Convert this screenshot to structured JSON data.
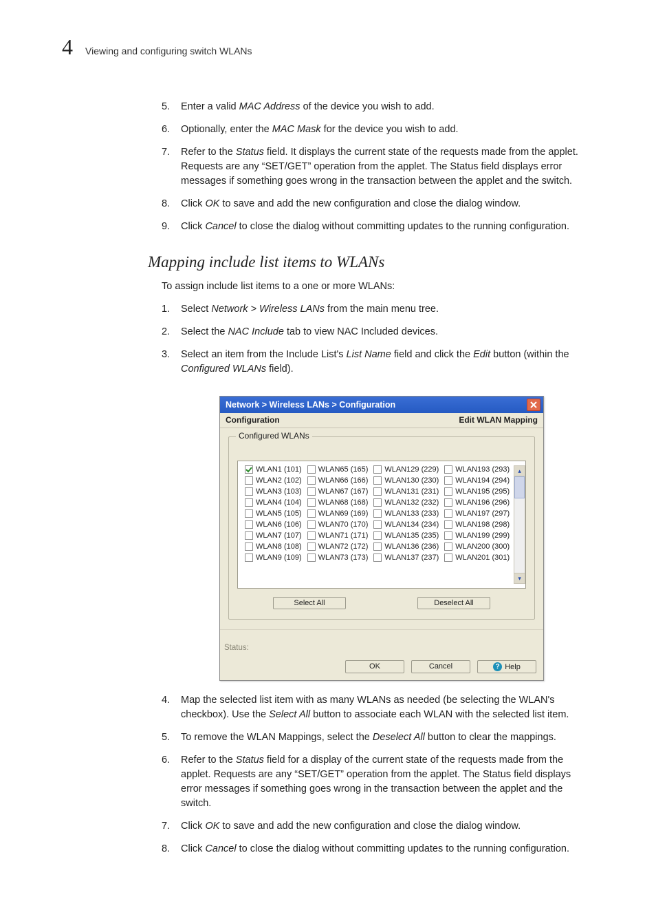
{
  "page": {
    "number": "4",
    "breadcrumb": "Viewing and configuring switch WLANs"
  },
  "top_list": [
    {
      "n": "5.",
      "html": "Enter a valid <em class='it'>MAC Address</em> of the device you wish to add."
    },
    {
      "n": "6.",
      "html": "Optionally, enter the <em class='it'>MAC Mask</em> for the device you wish to add."
    },
    {
      "n": "7.",
      "html": "Refer to the <em class='it'>Status</em> field. It displays the current state of the requests made from the applet. Requests are any “SET/GET” operation from the applet. The Status field displays error messages if something goes wrong in the transaction between the applet and the switch."
    },
    {
      "n": "8.",
      "html": "Click <em class='it'>OK</em> to save and add the new configuration and close the dialog window."
    },
    {
      "n": "9.",
      "html": "Click <em class='it'>Cancel</em> to close the dialog without committing updates to the running configuration."
    }
  ],
  "section_heading": "Mapping include list items to WLANs",
  "section_intro": "To assign include list items to a one or more WLANs:",
  "mid_list": [
    {
      "n": "1.",
      "html": "Select <em class='it'>Network &gt; Wireless LANs</em> from the main menu tree."
    },
    {
      "n": "2.",
      "html": "Select the <em class='it'>NAC Include</em> tab to view NAC Included devices."
    },
    {
      "n": "3.",
      "html": "Select an item from the Include List's <em class='it'>List Name</em> field and click the <em class='it'>Edit</em> button (within the <em class='it'>Configured WLANs</em> field)."
    }
  ],
  "dialog": {
    "title": "Network > Wireless LANs > Configuration",
    "left_header": "Configuration",
    "right_header": "Edit WLAN Mapping",
    "legend": "Configured WLANs",
    "select_all": "Select All",
    "deselect_all": "Deselect All",
    "status_label": "Status:",
    "ok": "OK",
    "cancel": "Cancel",
    "help": "Help",
    "columns": [
      [
        {
          "label": "WLAN1 (101)",
          "checked": true
        },
        {
          "label": "WLAN2 (102)",
          "checked": false
        },
        {
          "label": "WLAN3 (103)",
          "checked": false
        },
        {
          "label": "WLAN4 (104)",
          "checked": false
        },
        {
          "label": "WLAN5 (105)",
          "checked": false
        },
        {
          "label": "WLAN6 (106)",
          "checked": false
        },
        {
          "label": "WLAN7 (107)",
          "checked": false
        },
        {
          "label": "WLAN8 (108)",
          "checked": false
        },
        {
          "label": "WLAN9 (109)",
          "checked": false
        }
      ],
      [
        {
          "label": "WLAN65 (165)",
          "checked": false
        },
        {
          "label": "WLAN66 (166)",
          "checked": false
        },
        {
          "label": "WLAN67 (167)",
          "checked": false
        },
        {
          "label": "WLAN68 (168)",
          "checked": false
        },
        {
          "label": "WLAN69 (169)",
          "checked": false
        },
        {
          "label": "WLAN70 (170)",
          "checked": false
        },
        {
          "label": "WLAN71 (171)",
          "checked": false
        },
        {
          "label": "WLAN72 (172)",
          "checked": false
        },
        {
          "label": "WLAN73 (173)",
          "checked": false
        }
      ],
      [
        {
          "label": "WLAN129 (229)",
          "checked": false
        },
        {
          "label": "WLAN130 (230)",
          "checked": false
        },
        {
          "label": "WLAN131 (231)",
          "checked": false
        },
        {
          "label": "WLAN132 (232)",
          "checked": false
        },
        {
          "label": "WLAN133 (233)",
          "checked": false
        },
        {
          "label": "WLAN134 (234)",
          "checked": false
        },
        {
          "label": "WLAN135 (235)",
          "checked": false
        },
        {
          "label": "WLAN136 (236)",
          "checked": false
        },
        {
          "label": "WLAN137 (237)",
          "checked": false
        }
      ],
      [
        {
          "label": "WLAN193 (293)",
          "checked": false
        },
        {
          "label": "WLAN194 (294)",
          "checked": false
        },
        {
          "label": "WLAN195 (295)",
          "checked": false
        },
        {
          "label": "WLAN196 (296)",
          "checked": false
        },
        {
          "label": "WLAN197 (297)",
          "checked": false
        },
        {
          "label": "WLAN198 (298)",
          "checked": false
        },
        {
          "label": "WLAN199 (299)",
          "checked": false
        },
        {
          "label": "WLAN200 (300)",
          "checked": false
        },
        {
          "label": "WLAN201 (301)",
          "checked": false
        }
      ]
    ]
  },
  "bottom_list": [
    {
      "n": "4.",
      "html": "Map the selected list item with as many WLANs as needed (be selecting the WLAN's checkbox). Use the <em class='it'>Select All</em> button to associate each WLAN with the selected list item."
    },
    {
      "n": "5.",
      "html": "To remove the WLAN Mappings, select the <em class='it'>Deselect All</em> button to clear the mappings."
    },
    {
      "n": "6.",
      "html": "Refer to the <em class='it'>Status</em> field for a display of the current state of the requests made from the applet. Requests are any “SET/GET” operation from the applet. The Status field displays error messages if something goes wrong in the transaction between the applet and the switch."
    },
    {
      "n": "7.",
      "html": "Click <em class='it'>OK</em> to save and add the new configuration and close the dialog window."
    },
    {
      "n": "8.",
      "html": "Click <em class='it'>Cancel</em> to close the dialog without committing updates to the running configuration."
    }
  ]
}
